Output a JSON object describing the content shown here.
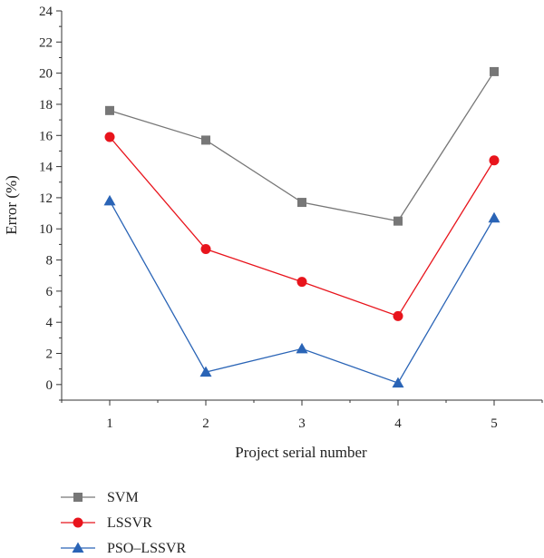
{
  "chart_data": {
    "type": "line",
    "xlabel": "Project serial number",
    "ylabel": "Error (%)",
    "x": [
      1,
      2,
      3,
      4,
      5
    ],
    "xlim": [
      0.5,
      5.5
    ],
    "ylim": [
      -1,
      24
    ],
    "xticks": [
      "1",
      "2",
      "3",
      "4",
      "5"
    ],
    "yticks": [
      "0",
      "2",
      "4",
      "6",
      "8",
      "10",
      "12",
      "14",
      "16",
      "18",
      "20",
      "22",
      "24"
    ],
    "grid": false,
    "legend_position": "bottom-left",
    "series": [
      {
        "name": "SVM",
        "values": [
          17.6,
          15.7,
          11.7,
          10.5,
          20.1
        ],
        "color": "#777777",
        "marker": "square"
      },
      {
        "name": "LSSVR",
        "values": [
          15.9,
          8.7,
          6.6,
          4.4,
          14.4
        ],
        "color": "#e8141c",
        "marker": "circle"
      },
      {
        "name": "PSO–LSSVR",
        "values": [
          11.8,
          0.8,
          2.3,
          0.1,
          10.7
        ],
        "color": "#2a64b6",
        "marker": "triangle"
      }
    ]
  }
}
